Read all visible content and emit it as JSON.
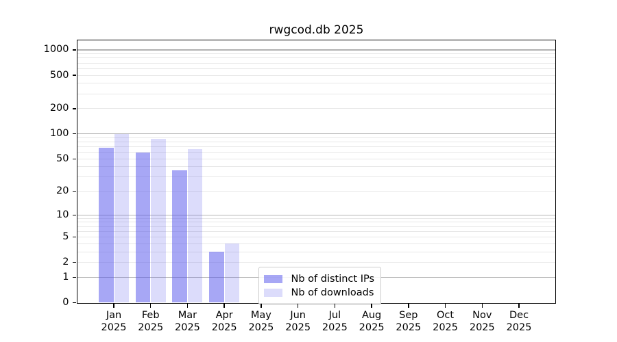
{
  "title": "rwgcod.db 2025",
  "chart_data": {
    "type": "bar",
    "title": "rwgcod.db 2025",
    "categories": [
      {
        "month": "Jan",
        "year": "2025"
      },
      {
        "month": "Feb",
        "year": "2025"
      },
      {
        "month": "Mar",
        "year": "2025"
      },
      {
        "month": "Apr",
        "year": "2025"
      },
      {
        "month": "May",
        "year": "2025"
      },
      {
        "month": "Jun",
        "year": "2025"
      },
      {
        "month": "Jul",
        "year": "2025"
      },
      {
        "month": "Aug",
        "year": "2025"
      },
      {
        "month": "Sep",
        "year": "2025"
      },
      {
        "month": "Oct",
        "year": "2025"
      },
      {
        "month": "Nov",
        "year": "2025"
      },
      {
        "month": "Dec",
        "year": "2025"
      }
    ],
    "series": [
      {
        "name": "Nb of distinct IPs",
        "color": "rgba(80,80,235,0.5)",
        "values": [
          68,
          60,
          36,
          3,
          0,
          0,
          0,
          0,
          0,
          0,
          0,
          0
        ]
      },
      {
        "name": "Nb of downloads",
        "color": "rgba(80,80,235,0.2)",
        "values": [
          100,
          87,
          66,
          4,
          0,
          0,
          0,
          0,
          0,
          0,
          0,
          0
        ]
      }
    ],
    "y_axis": {
      "scale": "log1p",
      "tick_values": [
        0,
        1,
        2,
        5,
        10,
        20,
        50,
        100,
        200,
        500,
        1000
      ],
      "major_grid_values": [
        1,
        10,
        100,
        1000
      ],
      "minor_grid_bases": [
        1,
        10,
        100
      ],
      "ylim": [
        0,
        1300
      ]
    },
    "legend": {
      "entries": [
        "Nb of distinct IPs",
        "Nb of downloads"
      ],
      "position": "lower-center"
    },
    "grid": true,
    "colors": {
      "bar_dark": "rgba(80,80,235,0.5)",
      "bar_light": "rgba(80,80,235,0.2)",
      "major_grid": "#b2b2b2",
      "minor_grid": "#e7e7e7",
      "spine": "#000000",
      "text": "#000000"
    }
  }
}
